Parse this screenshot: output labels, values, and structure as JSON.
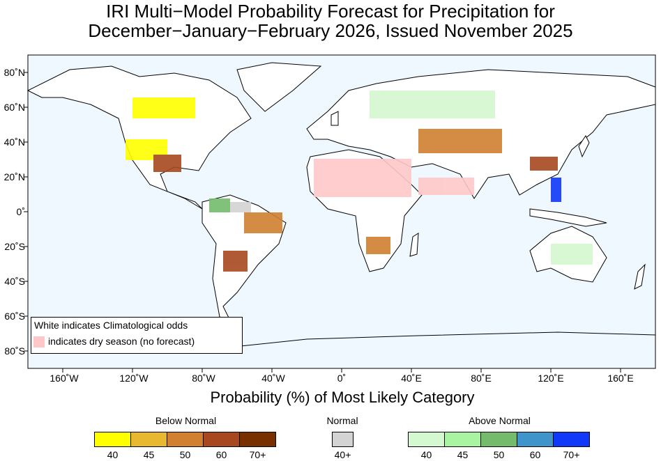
{
  "title": {
    "line1": "IRI Multi−Model Probability Forecast for Precipitation for",
    "line2": "December−January−February 2026, Issued November 2025"
  },
  "axes": {
    "lat_labels": [
      "80˚N",
      "60˚N",
      "40˚N",
      "20˚N",
      "0˚",
      "20˚S",
      "40˚S",
      "60˚S",
      "80˚S"
    ],
    "lon_labels": [
      "160˚W",
      "120˚W",
      "80˚W",
      "40˚W",
      "0˚",
      "40˚E",
      "80˚E",
      "120˚E",
      "160˚E"
    ],
    "xlabel": "Probability (%) of Most Likely Category"
  },
  "note": {
    "line1": "White indicates Climatological odds",
    "line2": "indicates dry season (no forecast)",
    "dry_color": "#ffc8c8"
  },
  "legend": {
    "below": {
      "label": "Below Normal",
      "ticks": [
        "40",
        "45",
        "50",
        "60",
        "70+"
      ],
      "colors": [
        "#ffff00",
        "#e8b830",
        "#d08030",
        "#a84820",
        "#783000"
      ]
    },
    "normal": {
      "label": "Normal",
      "ticks": [
        "40+"
      ],
      "colors": [
        "#d3d3d3"
      ]
    },
    "above": {
      "label": "Above Normal",
      "ticks": [
        "40",
        "45",
        "50",
        "60",
        "70+"
      ],
      "colors": [
        "#d4f8d0",
        "#a8f4a0",
        "#74bc6c",
        "#4094cc",
        "#1038f8"
      ]
    }
  }
}
